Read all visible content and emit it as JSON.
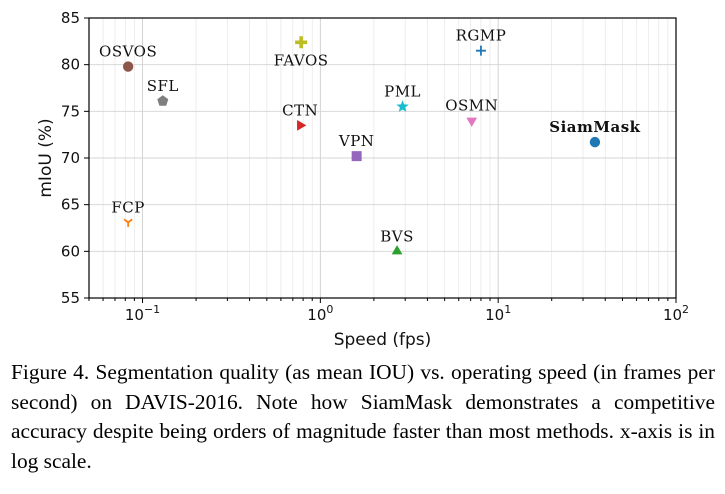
{
  "chart_data": {
    "type": "scatter",
    "x_scale": "log",
    "xlabel": "Speed (fps)",
    "ylabel": "mIoU (%)",
    "xlim": [
      0.05,
      100
    ],
    "ylim": [
      55,
      85
    ],
    "grid": true,
    "x_ticks": [
      {
        "value": 0.1,
        "base": "10",
        "exp": "−1"
      },
      {
        "value": 1,
        "base": "10",
        "exp": "0"
      },
      {
        "value": 10,
        "base": "10",
        "exp": "1"
      },
      {
        "value": 100,
        "base": "10",
        "exp": "2"
      }
    ],
    "y_ticks": [
      "55",
      "60",
      "65",
      "70",
      "75",
      "80",
      "85"
    ],
    "points": [
      {
        "name": "OSVOS",
        "x": 0.083,
        "y": 79.8,
        "marker": "circle",
        "color": "#8c564b",
        "label_pos": "above",
        "bold": false
      },
      {
        "name": "SFL",
        "x": 0.13,
        "y": 76.1,
        "marker": "pentagon",
        "color": "#7f7f7f",
        "label_pos": "above",
        "bold": false
      },
      {
        "name": "FCP",
        "x": 0.083,
        "y": 63.1,
        "marker": "tri_down",
        "color": "#ff7f0e",
        "label_pos": "above",
        "bold": false
      },
      {
        "name": "FAVOS",
        "x": 0.78,
        "y": 82.4,
        "marker": "plus",
        "color": "#bcbd22",
        "label_pos": "below",
        "bold": false
      },
      {
        "name": "CTN",
        "x": 0.77,
        "y": 73.5,
        "marker": "triangle_right",
        "color": "#d62728",
        "label_pos": "above",
        "bold": false
      },
      {
        "name": "VPN",
        "x": 1.6,
        "y": 70.2,
        "marker": "square",
        "color": "#9467bd",
        "label_pos": "above",
        "bold": false
      },
      {
        "name": "PML",
        "x": 2.9,
        "y": 75.5,
        "marker": "star",
        "color": "#17becf",
        "label_pos": "above",
        "bold": false
      },
      {
        "name": "BVS",
        "x": 2.7,
        "y": 60.0,
        "marker": "triangle_up",
        "color": "#2ca02c",
        "label_pos": "above",
        "bold": false
      },
      {
        "name": "RGMP",
        "x": 8.0,
        "y": 81.5,
        "marker": "plus_thin",
        "color": "#1f77b4",
        "label_pos": "above",
        "bold": false
      },
      {
        "name": "OSMN",
        "x": 7.1,
        "y": 74.0,
        "marker": "triangle_down",
        "color": "#e377c2",
        "label_pos": "above",
        "bold": false
      },
      {
        "name": "SiamMask",
        "x": 35,
        "y": 71.7,
        "marker": "circle",
        "color": "#1f77b4",
        "label_pos": "above",
        "bold": true
      }
    ]
  },
  "caption": "Figure 4. Segmentation quality (as mean IOU) vs. operating speed (in frames per second) on DAVIS-2016.  Note how SiamMask demonstrates a competitive accuracy despite being orders of magnitude faster than most methods. x-axis is in log scale."
}
